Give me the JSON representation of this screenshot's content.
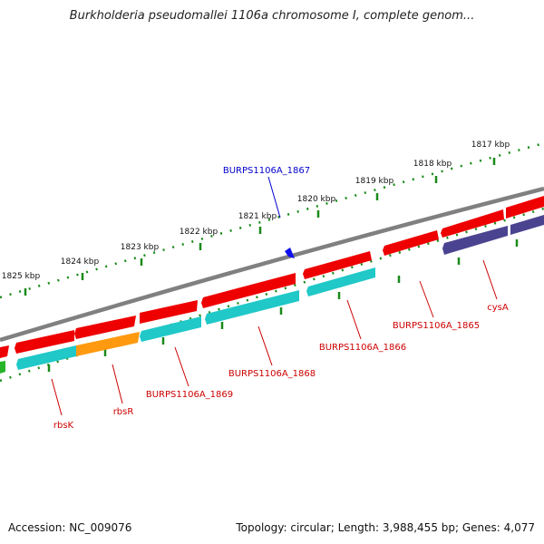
{
  "header": {
    "title": "Burkholderia pseudomallei 1106a chromosome I, complete genom..."
  },
  "footer": {
    "accession": "Accession: NC_009076",
    "summary": "Topology: circular; Length: 3,988,455 bp; Genes: 4,077"
  },
  "colors": {
    "backbone": "#808080",
    "forward_gene": "#ee0000",
    "reverse_gene": "#20c8c8",
    "highlight_gene": "#ff9a10",
    "cysA_gene": "#4a4490",
    "tick_dots": "#1a8a1a",
    "label_red": "#cc0000",
    "label_blue": "#0000cc"
  },
  "ruler": {
    "unit": "kbp",
    "labels": [
      "1817 kbp",
      "1818 kbp",
      "1819 kbp",
      "1820 kbp",
      "1821 kbp",
      "1822 kbp",
      "1823 kbp",
      "1824 kbp",
      "1825 kbp"
    ]
  },
  "genes": [
    {
      "name": "BURPS1106A_1867",
      "color": "blue"
    },
    {
      "name": "BURPS1106A_1865",
      "color": "red"
    },
    {
      "name": "cysA",
      "color": "red"
    },
    {
      "name": "BURPS1106A_1866",
      "color": "red"
    },
    {
      "name": "BURPS1106A_1868",
      "color": "red"
    },
    {
      "name": "BURPS1106A_1869",
      "color": "red"
    },
    {
      "name": "rbsR",
      "color": "red"
    },
    {
      "name": "rbsK",
      "color": "red"
    }
  ]
}
